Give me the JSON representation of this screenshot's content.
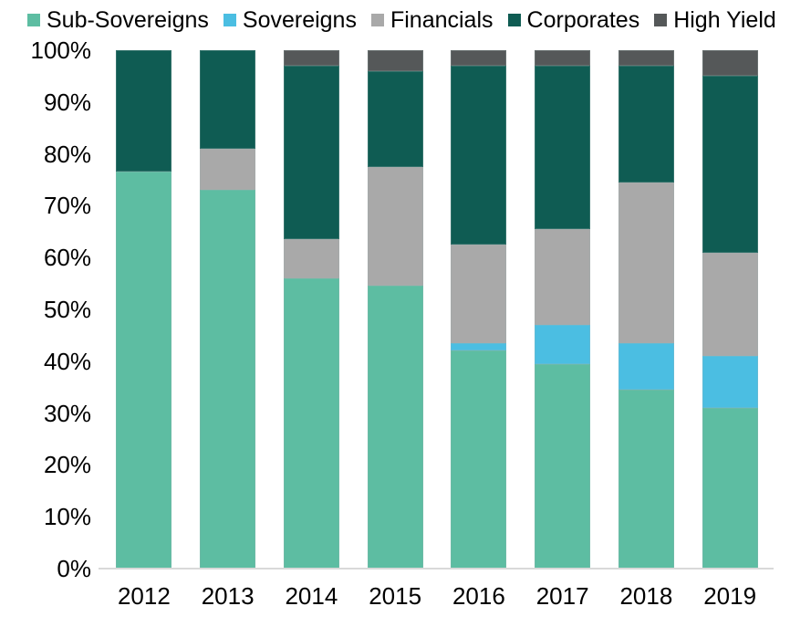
{
  "chart_data": {
    "type": "bar",
    "variant": "stacked-percent",
    "orientation": "vertical",
    "title": "",
    "xlabel": "",
    "ylabel": "",
    "ylim": [
      0,
      100
    ],
    "grid": false,
    "legend_position": "top",
    "categories": [
      "2012",
      "2013",
      "2014",
      "2015",
      "2016",
      "2017",
      "2018",
      "2019"
    ],
    "series": [
      {
        "name": "Sub-Sovereigns",
        "color": "#5DBDA2",
        "values": [
          76.5,
          73,
          56,
          54.5,
          42,
          39.5,
          34.5,
          31
        ]
      },
      {
        "name": "Sovereigns",
        "color": "#4BBEE2",
        "values": [
          0,
          0,
          0,
          0,
          1.5,
          7.5,
          9,
          10
        ]
      },
      {
        "name": "Financials",
        "color": "#A9A9A9",
        "values": [
          0,
          8,
          7.5,
          23,
          19,
          18.5,
          31,
          20
        ]
      },
      {
        "name": "Corporates",
        "color": "#0F5C53",
        "values": [
          23.5,
          19,
          33.5,
          18.5,
          34.5,
          31.5,
          22.5,
          34
        ]
      },
      {
        "name": "High Yield",
        "color": "#555859",
        "values": [
          0,
          0,
          3,
          4,
          3,
          3,
          3,
          5
        ]
      }
    ],
    "y_ticks": [
      "0%",
      "10%",
      "20%",
      "30%",
      "40%",
      "50%",
      "60%",
      "70%",
      "80%",
      "90%",
      "100%"
    ],
    "axis_line_color": "#D9D9D9",
    "text_color": "#000000"
  }
}
